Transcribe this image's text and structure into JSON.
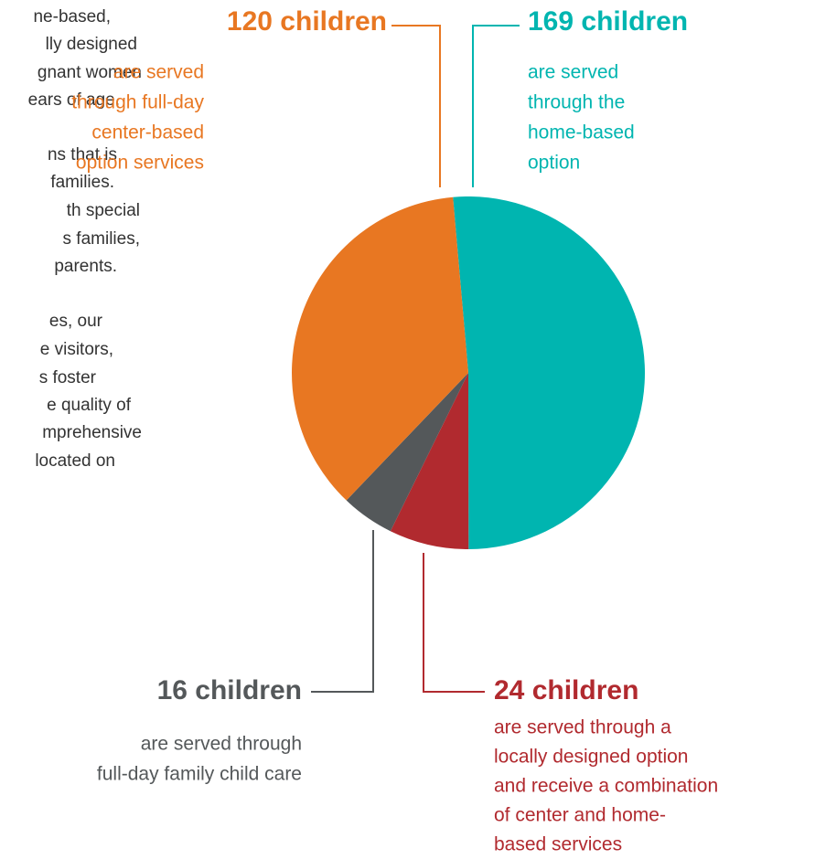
{
  "side_text": [
    "ne-based,",
    "lly designed",
    "gnant women",
    "ears of age.",
    "ns that is",
    "families.",
    "th special",
    "s families,",
    "parents.",
    "es, our",
    "e visitors,",
    "s foster",
    "e quality of",
    "mprehensive",
    "located on"
  ],
  "chart_data": {
    "type": "pie",
    "categories": [
      [
        "are served",
        "through the",
        "home-based",
        "option"
      ],
      [
        "are served through a",
        "locally designed option",
        "and receive a combination",
        "of center and home-",
        "based services"
      ],
      [
        "are served through",
        "full-day family child care"
      ],
      [
        "are served",
        "through full-day",
        "center-based",
        "option services"
      ]
    ],
    "values": [
      169,
      24,
      16,
      120
    ],
    "value_labels": [
      "169 children",
      "24 children",
      "16 children",
      "120 children"
    ],
    "colors": [
      "#00b5b0",
      "#b12a2f",
      "#54585a",
      "#e87722"
    ]
  }
}
